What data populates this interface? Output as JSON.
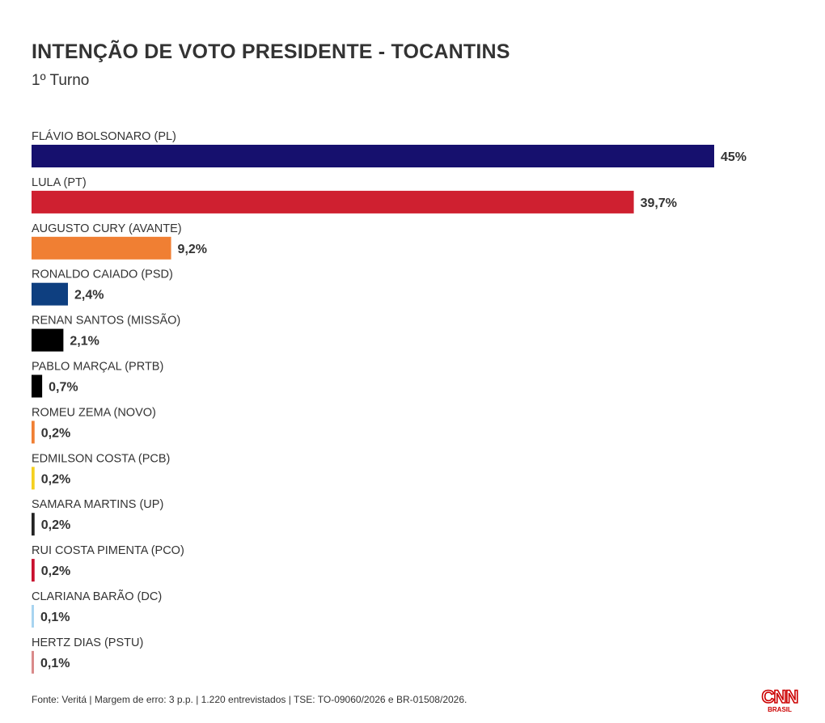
{
  "title": "INTENÇÃO DE VOTO PRESIDENTE - TOCANTINS",
  "subtitle": "1º Turno",
  "footer": "Fonte: Veritá | Margem de erro: 3 p.p. | 1.220 entrevistados | TSE: TO-09060/2026 e BR-01508/2026.",
  "logo": {
    "text": "CNN",
    "subtext": "BRASIL",
    "color": "#cc0000"
  },
  "chart_data": {
    "type": "bar",
    "orientation": "horizontal",
    "xlim": [
      0,
      45
    ],
    "grid": false,
    "categories": [
      "FLÁVIO BOLSONARO (PL)",
      "LULA (PT)",
      "AUGUSTO CURY (AVANTE)",
      "RONALDO CAIADO (PSD)",
      "RENAN SANTOS (MISSÃO)",
      "PABLO MARÇAL (PRTB)",
      "ROMEU ZEMA (NOVO)",
      "EDMILSON COSTA (PCB)",
      "SAMARA MARTINS (UP)",
      "RUI COSTA PIMENTA (PCO)",
      "CLARIANA BARÃO (DC)",
      "HERTZ DIAS (PSTU)"
    ],
    "values": [
      45,
      39.7,
      9.2,
      2.4,
      2.1,
      0.7,
      0.2,
      0.2,
      0.2,
      0.2,
      0.1,
      0.1
    ],
    "value_labels": [
      "45%",
      "39,7%",
      "9,2%",
      "2,4%",
      "2,1%",
      "0,7%",
      "0,2%",
      "0,2%",
      "0,2%",
      "0,2%",
      "0,1%",
      "0,1%"
    ],
    "colors": [
      "#16106e",
      "#cf2030",
      "#f07f33",
      "#0e3f80",
      "#000000",
      "#000000",
      "#f07f33",
      "#f5d020",
      "#222222",
      "#c8102e",
      "#a8d4f0",
      "#d98a8a"
    ]
  }
}
